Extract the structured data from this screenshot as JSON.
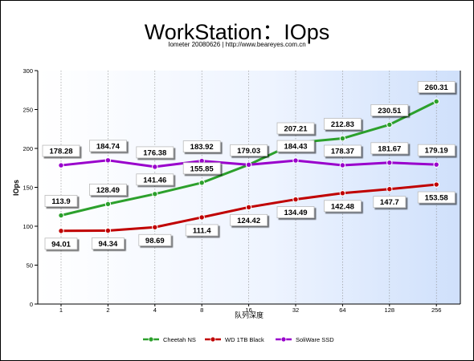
{
  "chart_data": {
    "type": "line",
    "title": "WorkStation：IOps",
    "subtitle": "Iometer 20080626 | http://www.beareyes.com.cn",
    "xlabel": "队列深度",
    "ylabel": "IOps",
    "categories": [
      "1",
      "2",
      "4",
      "8",
      "16",
      "32",
      "64",
      "128",
      "256"
    ],
    "ylim": [
      0,
      300
    ],
    "yticks": [
      0,
      50,
      100,
      150,
      200,
      250,
      300
    ],
    "grid": {
      "vertical": "dashed",
      "horizontal": "none"
    },
    "legend_position": "bottom",
    "series": [
      {
        "name": "Cheetah NS",
        "color": "#2ca02c",
        "values": [
          113.9,
          128.49,
          141.46,
          155.85,
          179.03,
          207.21,
          212.83,
          230.51,
          260.31
        ],
        "labels": [
          "113.9",
          "128.49",
          "141.46",
          "155.85",
          "179.03",
          "207.21",
          "212.83",
          "230.51",
          "260.31"
        ]
      },
      {
        "name": "WD 1TB Black",
        "color": "#c00000",
        "values": [
          94.01,
          94.34,
          98.69,
          111.4,
          124.42,
          134.49,
          142.48,
          147.7,
          153.58
        ],
        "labels": [
          "94.01",
          "94.34",
          "98.69",
          "111.4",
          "124.42",
          "134.49",
          "142.48",
          "147.7",
          "153.58"
        ]
      },
      {
        "name": "SoliWare SSD",
        "color": "#9900cc",
        "values": [
          178.28,
          184.74,
          176.38,
          183.92,
          179.03,
          184.43,
          178.37,
          181.67,
          179.19
        ],
        "labels": [
          "178.28",
          "184.74",
          "176.38",
          "183.92",
          "",
          "184.43",
          "178.37",
          "181.67",
          "179.19"
        ]
      }
    ]
  }
}
